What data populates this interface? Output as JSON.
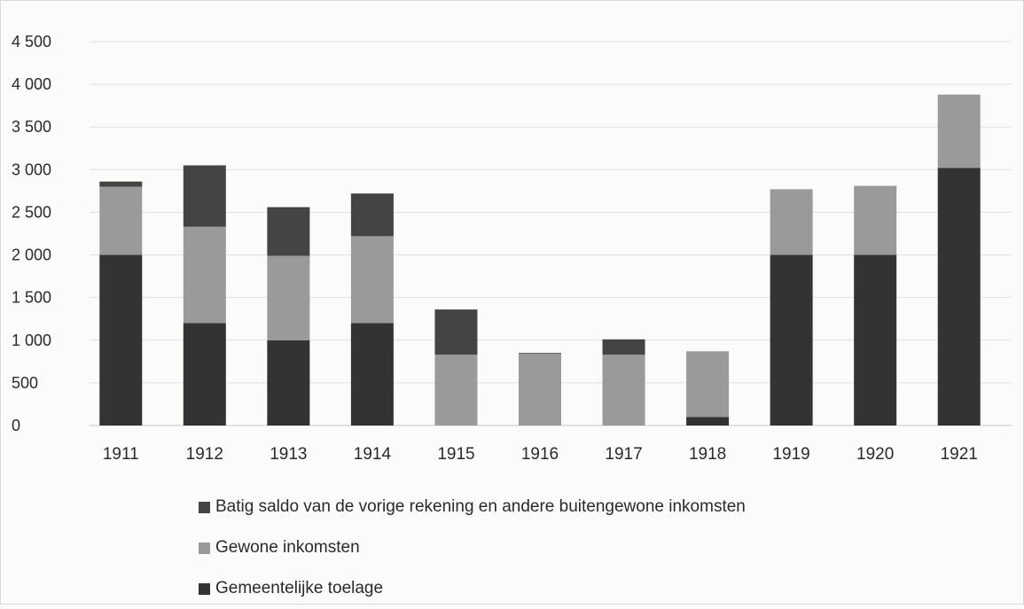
{
  "chart_data": {
    "type": "bar",
    "stacked": true,
    "categories": [
      "1911",
      "1912",
      "1913",
      "1914",
      "1915",
      "1916",
      "1917",
      "1918",
      "1919",
      "1920",
      "1921"
    ],
    "series": [
      {
        "name": "Gemeentelijke toelage",
        "color": "#333333",
        "values": [
          2000,
          1200,
          1000,
          1200,
          0,
          0,
          0,
          100,
          2000,
          2000,
          3020
        ]
      },
      {
        "name": "Gewone inkomsten",
        "color": "#9a9a9a",
        "values": [
          800,
          1130,
          990,
          1020,
          830,
          840,
          830,
          770,
          770,
          810,
          860
        ]
      },
      {
        "name": "Batig saldo van de vorige rekening en andere buitengewone inkomsten",
        "color": "#444444",
        "values": [
          60,
          720,
          570,
          500,
          530,
          10,
          180,
          0,
          0,
          0,
          0
        ]
      }
    ],
    "ylim": [
      0,
      4500
    ],
    "yticks": [
      0,
      500,
      1000,
      1500,
      2000,
      2500,
      3000,
      3500,
      4000,
      4500
    ],
    "ytick_labels": [
      "0",
      "500",
      "1 000",
      "1 500",
      "2 000",
      "2 500",
      "3 000",
      "3 500",
      "4 000",
      "4 500"
    ],
    "grid": true,
    "legend_position": "bottom",
    "legend_order": [
      "Batig saldo van de vorige rekening en andere buitengewone inkomsten",
      "Gewone inkomsten",
      "Gemeentelijke toelage"
    ]
  }
}
